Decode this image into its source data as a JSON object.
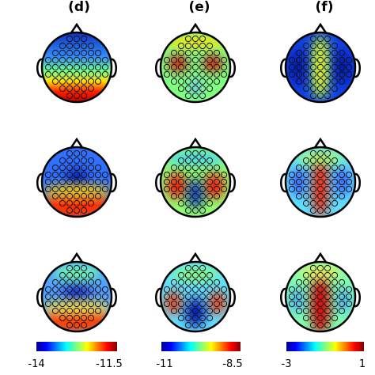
{
  "columns": [
    {
      "label": "(d)",
      "colorbar": {
        "min": "-14",
        "max": "-11.5"
      }
    },
    {
      "label": "(e)",
      "colorbar": {
        "min": "-11",
        "max": "-8.5"
      }
    },
    {
      "label": "(f)",
      "colorbar": {
        "min": "-3",
        "max": "1"
      }
    }
  ]
}
